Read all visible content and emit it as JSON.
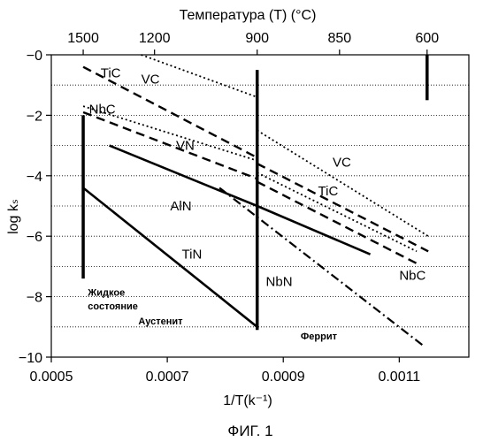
{
  "chart_data": {
    "type": "line",
    "title": "",
    "top_axis_title": "Температура (T) (°C)",
    "xlabel": "1/T(k⁻¹)",
    "ylabel": "log kₛ",
    "caption": "ФИГ. 1",
    "xlim": [
      0.0005,
      0.00122
    ],
    "ylim": [
      -10,
      0
    ],
    "x_ticks": [
      {
        "value": 0.0005,
        "label": "0.0005"
      },
      {
        "value": 0.0007,
        "label": "0.0007"
      },
      {
        "value": 0.0009,
        "label": "0.0009"
      },
      {
        "value": 0.0011,
        "label": "0.0011"
      }
    ],
    "y_ticks": [
      {
        "value": 0,
        "label": "−0"
      },
      {
        "value": -2,
        "label": "−2"
      },
      {
        "value": -4,
        "label": "−4"
      },
      {
        "value": -6,
        "label": "−6"
      },
      {
        "value": -8,
        "label": "−8"
      },
      {
        "value": -10,
        "label": "−10"
      }
    ],
    "top_ticks": [
      {
        "value": 0.000555,
        "label": "1500"
      },
      {
        "value": 0.000678,
        "label": "1200"
      },
      {
        "value": 0.000855,
        "label": "900"
      },
      {
        "value": 0.000997,
        "label": "850"
      },
      {
        "value": 0.001148,
        "label": "600"
      }
    ],
    "grid": "horizontal-dotted",
    "boundaries": [
      {
        "name": "liquid-boundary",
        "x": 0.000555,
        "y1": -7.4,
        "y2": -2.0
      },
      {
        "name": "austenite-ferrite-boundary",
        "x": 0.000855,
        "y1": -9.1,
        "y2": -0.5
      },
      {
        "name": "marker-600",
        "x": 0.001148,
        "y1": -1.5,
        "y2": 0
      }
    ],
    "series": [
      {
        "name": "TiC",
        "style": "dashed",
        "label_pos": [
          0.000585,
          -0.6
        ],
        "segments": [
          [
            [
              0.000555,
              -0.4
            ],
            [
              0.000855,
              -3.4
            ]
          ],
          [
            [
              0.000855,
              -3.6
            ],
            [
              0.00115,
              -6.5
            ]
          ]
        ],
        "extra_label": {
          "text": "TiC",
          "pos": [
            0.00096,
            -4.5
          ]
        }
      },
      {
        "name": "NbC",
        "style": "dashed",
        "label_pos": [
          0.000565,
          -1.8
        ],
        "segments": [
          [
            [
              0.000555,
              -1.9
            ],
            [
              0.000855,
              -4.1
            ]
          ],
          [
            [
              0.000855,
              -4.2
            ],
            [
              0.00113,
              -6.9
            ]
          ]
        ],
        "extra_label": {
          "text": "NbC",
          "pos": [
            0.0011,
            -7.3
          ]
        }
      },
      {
        "name": "VC",
        "style": "dotted",
        "label_pos": [
          0.000655,
          -0.8
        ],
        "segments": [
          [
            [
              0.000655,
              0.0
            ],
            [
              0.000855,
              -1.4
            ]
          ],
          [
            [
              0.000855,
              -2.5
            ],
            [
              0.00115,
              -6.0
            ]
          ]
        ],
        "extra_label": {
          "text": "VC",
          "pos": [
            0.000985,
            -3.55
          ]
        }
      },
      {
        "name": "VN",
        "style": "dotted",
        "label_pos": [
          0.000715,
          -3.0
        ],
        "segments": [
          [
            [
              0.000555,
              -1.7
            ],
            [
              0.000855,
              -3.5
            ]
          ],
          [
            [
              0.000855,
              -3.9
            ],
            [
              0.00113,
              -6.5
            ]
          ]
        ]
      },
      {
        "name": "AlN",
        "style": "solid",
        "label_pos": [
          0.000705,
          -5.0
        ],
        "segments": [
          [
            [
              0.0006,
              -3.0
            ],
            [
              0.000855,
              -5.0
            ]
          ],
          [
            [
              0.000855,
              -5.0
            ],
            [
              0.00105,
              -6.6
            ]
          ]
        ]
      },
      {
        "name": "TiN",
        "style": "solid",
        "label_pos": [
          0.000725,
          -6.6
        ],
        "segments": [
          [
            [
              0.000555,
              -4.4
            ],
            [
              0.000855,
              -9.0
            ]
          ]
        ]
      },
      {
        "name": "NbN",
        "style": "dashdot",
        "label_pos": [
          0.00087,
          -7.5
        ],
        "segments": [
          [
            [
              0.00079,
              -4.4
            ],
            [
              0.00114,
              -9.6
            ]
          ]
        ]
      }
    ],
    "region_labels": [
      {
        "text": "Жидкое",
        "pos": [
          0.000563,
          -7.85
        ]
      },
      {
        "text": "состояние",
        "pos": [
          0.000563,
          -8.3
        ]
      },
      {
        "text": "Аустенит",
        "pos": [
          0.00065,
          -8.8
        ]
      },
      {
        "text": "Феррит",
        "pos": [
          0.00093,
          -9.3
        ]
      }
    ]
  }
}
